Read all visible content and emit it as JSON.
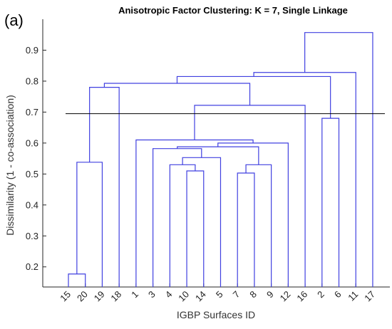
{
  "panel_label": "(a)",
  "chart_data": {
    "type": "dendrogram",
    "title": "Anisotropic Factor Clustering: K = 7, Single Linkage",
    "xlabel": "IGBP Surfaces ID",
    "ylabel": "Dissimilarity (1 - co-association)",
    "ylim": [
      0.135,
      1.0
    ],
    "yticks": [
      0.2,
      0.3,
      0.4,
      0.5,
      0.6,
      0.7,
      0.8,
      0.9
    ],
    "threshold": 0.695,
    "leaves": [
      "15",
      "20",
      "19",
      "18",
      "1",
      "3",
      "4",
      "10",
      "14",
      "5",
      "7",
      "8",
      "9",
      "12",
      "16",
      "2",
      "6",
      "11",
      "17"
    ],
    "links": [
      {
        "a": "L0",
        "b": "L1",
        "height": 0.177
      },
      {
        "a": "L7",
        "b": "L8",
        "height": 0.51
      },
      {
        "a": "L10",
        "b": "L11",
        "height": 0.503
      },
      {
        "a": "L6",
        "b": "N1",
        "height": 0.53
      },
      {
        "a": "N2",
        "b": "L12",
        "height": 0.53
      },
      {
        "a": "N0",
        "b": "L2",
        "height": 0.538
      },
      {
        "a": "N3",
        "b": "L9",
        "height": 0.553
      },
      {
        "a": "L5",
        "b": "N6",
        "height": 0.582
      },
      {
        "a": "N7",
        "b": "N4",
        "height": 0.588
      },
      {
        "a": "N8",
        "b": "L13",
        "height": 0.6
      },
      {
        "a": "L4",
        "b": "N9",
        "height": 0.61
      },
      {
        "a": "L15",
        "b": "L16",
        "height": 0.68
      },
      {
        "a": "N10",
        "b": "L14",
        "height": 0.722
      },
      {
        "a": "N5",
        "b": "L3",
        "height": 0.78
      },
      {
        "a": "N13",
        "b": "N12",
        "height": 0.793
      },
      {
        "a": "N14",
        "b": "N11",
        "height": 0.815
      },
      {
        "a": "N15",
        "b": "L17",
        "height": 0.828
      },
      {
        "a": "N16",
        "b": "L18",
        "height": 0.957
      }
    ]
  }
}
